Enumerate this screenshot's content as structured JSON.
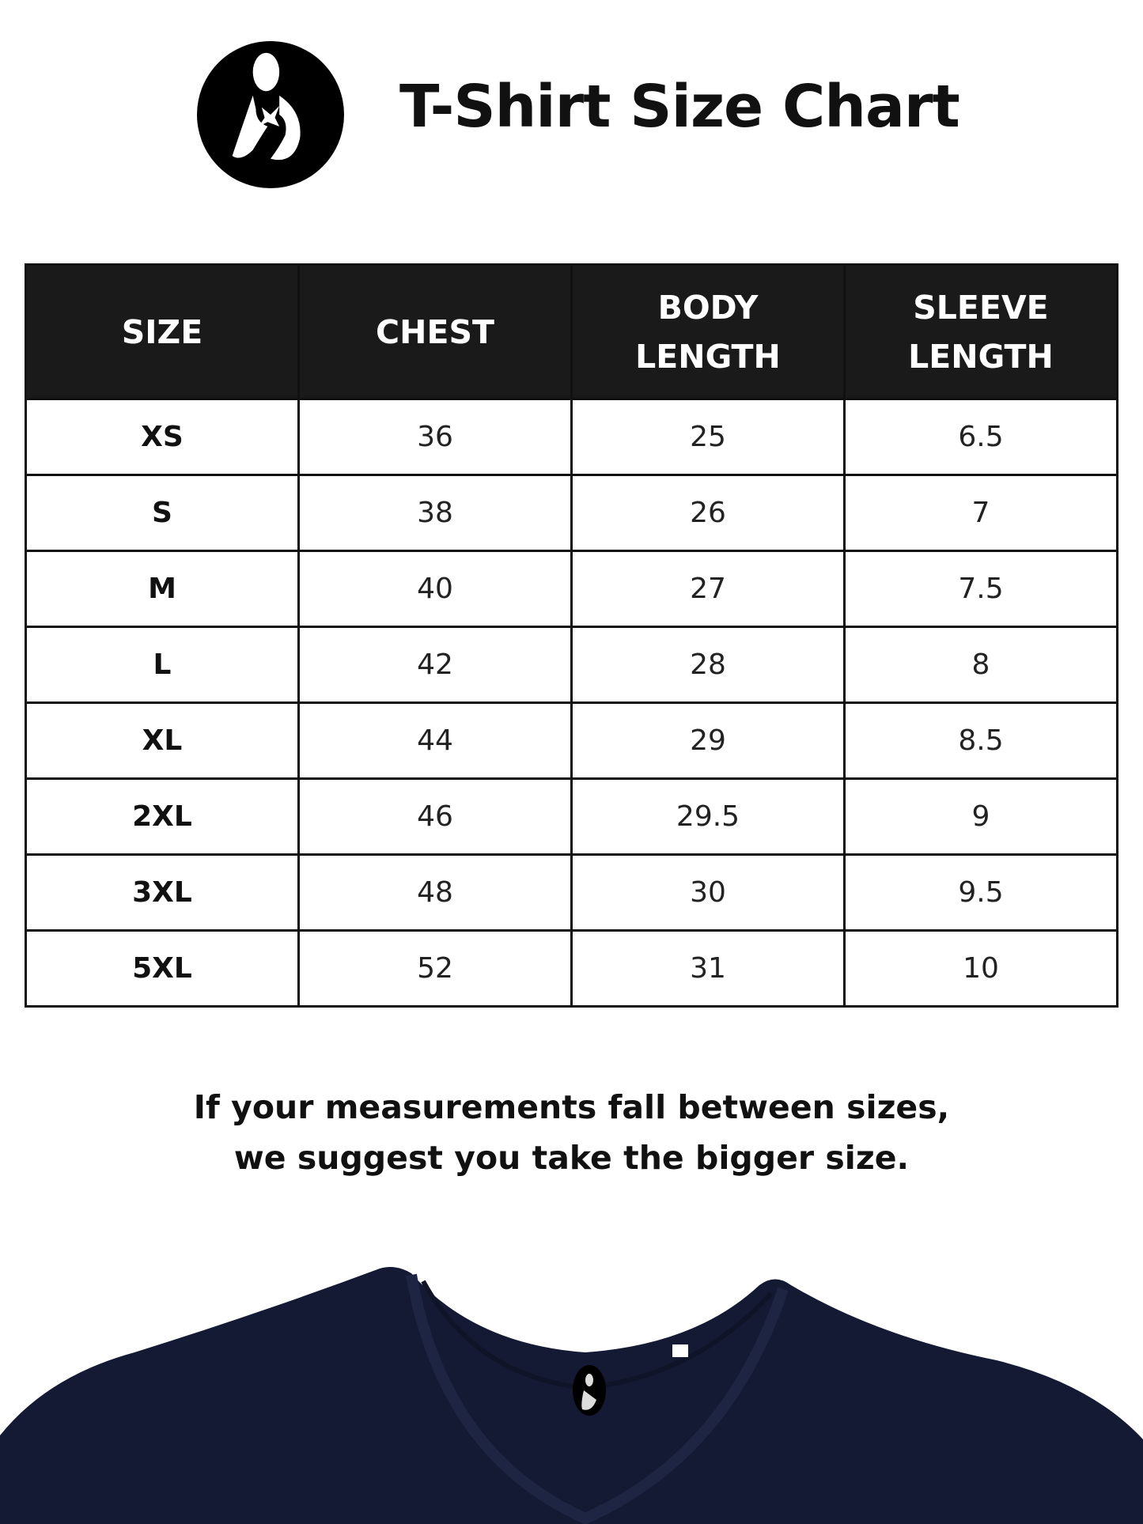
{
  "header": {
    "logo_icon": "mother-and-child-logo-icon",
    "title": "T-Shirt Size Chart"
  },
  "table": {
    "columns": [
      {
        "line1": "SIZE",
        "line2": ""
      },
      {
        "line1": "CHEST",
        "line2": ""
      },
      {
        "line1": "BODY",
        "line2": "LENGTH"
      },
      {
        "line1": "SLEEVE",
        "line2": "LENGTH"
      }
    ],
    "rows": [
      [
        "XS",
        "36",
        "25",
        "6.5"
      ],
      [
        "S",
        "38",
        "26",
        "7"
      ],
      [
        "M",
        "40",
        "27",
        "7.5"
      ],
      [
        "L",
        "42",
        "28",
        "8"
      ],
      [
        "XL",
        "44",
        "29",
        "8.5"
      ],
      [
        "2XL",
        "46",
        "29.5",
        "9"
      ],
      [
        "3XL",
        "48",
        "30",
        "9.5"
      ],
      [
        "5XL",
        "52",
        "31",
        "10"
      ]
    ]
  },
  "note": {
    "line1": "If your measurements fall between sizes,",
    "line2": "we suggest you take the bigger size."
  },
  "colors": {
    "header_bg": "#1a1a1a",
    "shirt": "#141a33"
  }
}
